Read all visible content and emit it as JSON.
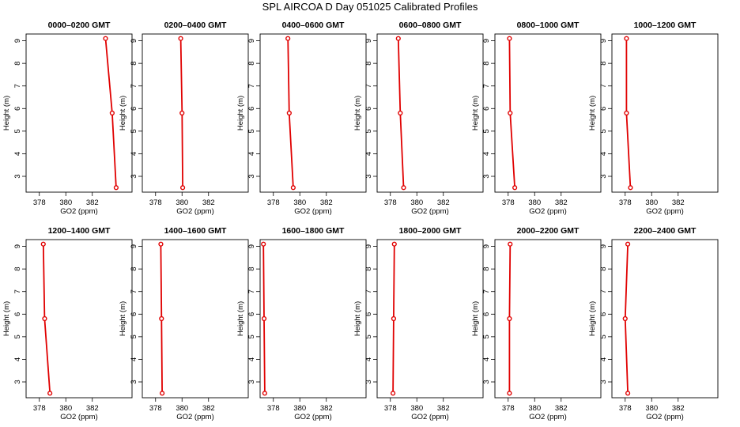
{
  "title": "SPL AIRCOA D  Day 051025  Calibrated Profiles",
  "colors": {
    "profile": "#e00000",
    "axis": "#000000"
  },
  "chart_data": {
    "type": "line",
    "xlabel": "GO2 (ppm)",
    "ylabel": "Height (m)",
    "xlim": [
      377,
      385
    ],
    "ylim": [
      2.3,
      9.3
    ],
    "x_ticks": [
      378,
      380,
      382
    ],
    "y_ticks": [
      3,
      4,
      5,
      6,
      7,
      8,
      9
    ],
    "grid": false,
    "panels": [
      {
        "title": "0000–0200 GMT",
        "points": [
          [
            383.0,
            9.1
          ],
          [
            383.5,
            5.8
          ],
          [
            383.8,
            2.5
          ]
        ]
      },
      {
        "title": "0200–0400 GMT",
        "points": [
          [
            379.9,
            9.1
          ],
          [
            380.0,
            5.8
          ],
          [
            380.05,
            2.5
          ]
        ]
      },
      {
        "title": "0400–0600 GMT",
        "points": [
          [
            379.1,
            9.1
          ],
          [
            379.2,
            5.8
          ],
          [
            379.5,
            2.5
          ]
        ]
      },
      {
        "title": "0600–0800 GMT",
        "points": [
          [
            378.6,
            9.1
          ],
          [
            378.75,
            5.8
          ],
          [
            379.0,
            2.5
          ]
        ]
      },
      {
        "title": "0800–1000 GMT",
        "points": [
          [
            378.1,
            9.1
          ],
          [
            378.15,
            5.8
          ],
          [
            378.5,
            2.5
          ]
        ]
      },
      {
        "title": "1000–1200 GMT",
        "points": [
          [
            378.1,
            9.1
          ],
          [
            378.1,
            5.8
          ],
          [
            378.4,
            2.5
          ]
        ]
      },
      {
        "title": "1200–1400 GMT",
        "points": [
          [
            378.3,
            9.1
          ],
          [
            378.4,
            5.8
          ],
          [
            378.8,
            2.5
          ]
        ]
      },
      {
        "title": "1400–1600 GMT",
        "points": [
          [
            378.4,
            9.1
          ],
          [
            378.45,
            5.8
          ],
          [
            378.5,
            2.5
          ]
        ]
      },
      {
        "title": "1600–1800 GMT",
        "points": [
          [
            377.25,
            9.1
          ],
          [
            377.3,
            5.8
          ],
          [
            377.35,
            2.5
          ]
        ]
      },
      {
        "title": "1800–2000 GMT",
        "points": [
          [
            378.3,
            9.1
          ],
          [
            378.25,
            5.8
          ],
          [
            378.2,
            2.5
          ]
        ]
      },
      {
        "title": "2000–2200 GMT",
        "points": [
          [
            378.15,
            9.1
          ],
          [
            378.1,
            5.8
          ],
          [
            378.1,
            2.5
          ]
        ]
      },
      {
        "title": "2200–2400 GMT",
        "points": [
          [
            378.2,
            9.1
          ],
          [
            378.0,
            5.8
          ],
          [
            378.2,
            2.5
          ]
        ]
      }
    ]
  }
}
